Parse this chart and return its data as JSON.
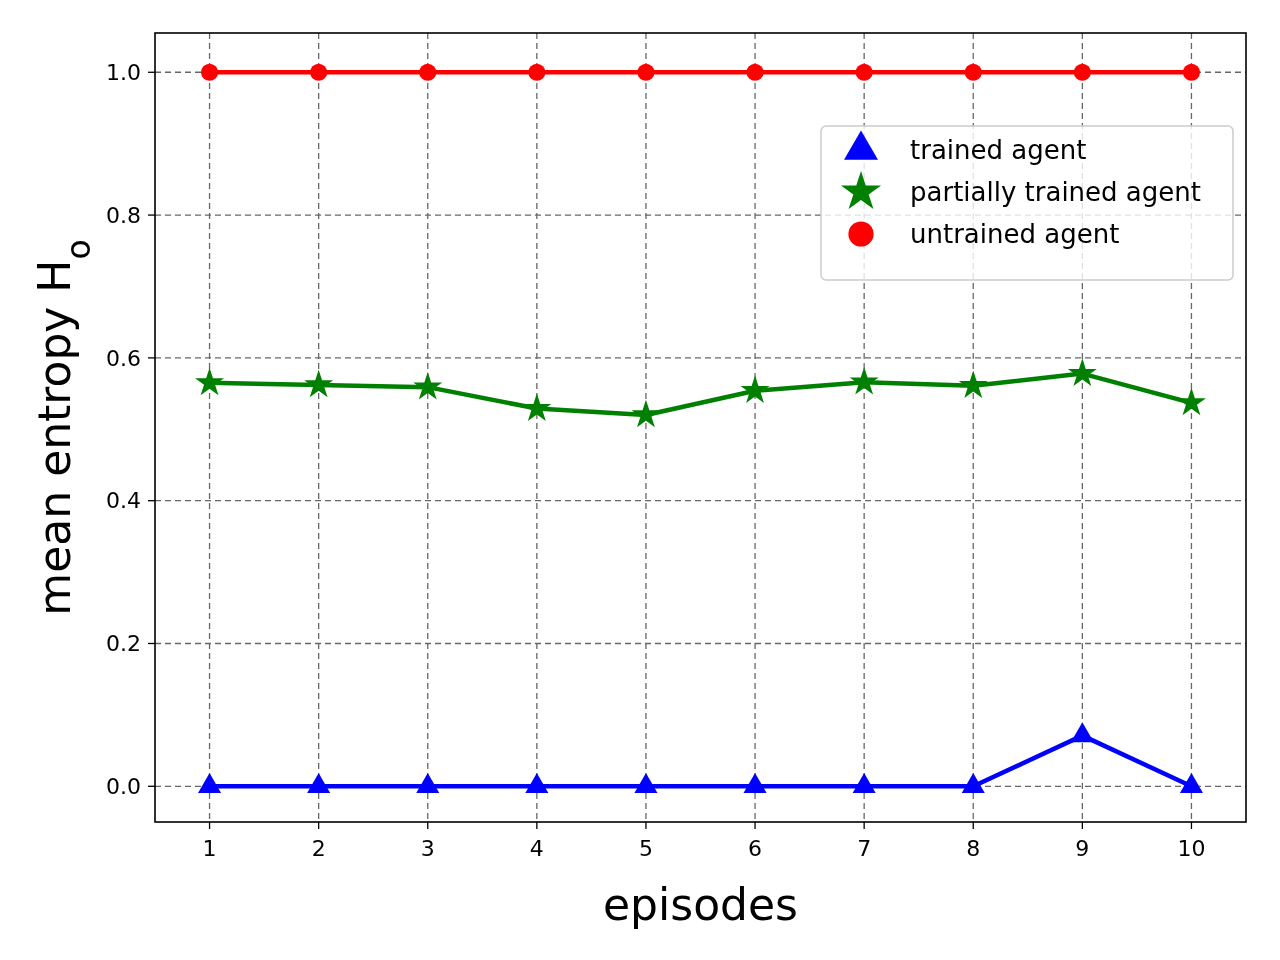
{
  "chart_data": {
    "type": "line",
    "xlabel": "episodes",
    "ylabel": "mean entropy H$_{o}$",
    "x": [
      1,
      2,
      3,
      4,
      5,
      6,
      7,
      8,
      9,
      10
    ],
    "series": [
      {
        "name": "trained agent",
        "color": "#0000ff",
        "marker": "triangle",
        "values": [
          0,
          0,
          0,
          0,
          0,
          0,
          0,
          0,
          0.071,
          0
        ]
      },
      {
        "name": "partially trained agent",
        "color": "#008000",
        "marker": "star",
        "values": [
          0.565,
          0.562,
          0.559,
          0.529,
          0.52,
          0.554,
          0.566,
          0.561,
          0.578,
          0.537
        ]
      },
      {
        "name": "untrained agent",
        "color": "#ff0000",
        "marker": "circle",
        "values": [
          1,
          1,
          1,
          1,
          1,
          1,
          1,
          1,
          1,
          1
        ]
      }
    ],
    "xlim": [
      0.5,
      10.5
    ],
    "ylim": [
      -0.05,
      1.055
    ],
    "xticks": [
      1,
      2,
      3,
      4,
      5,
      6,
      7,
      8,
      9,
      10
    ],
    "yticks": [
      {
        "value": 0,
        "label": "0.0"
      },
      {
        "value": 0.2,
        "label": "0.2"
      },
      {
        "value": 0.4,
        "label": "0.4"
      },
      {
        "value": 0.6,
        "label": "0.6"
      },
      {
        "value": 0.8,
        "label": "0.8"
      },
      {
        "value": 1,
        "label": "1.0"
      }
    ],
    "grid": true,
    "legend": "top right",
    "line_style": "solid"
  }
}
